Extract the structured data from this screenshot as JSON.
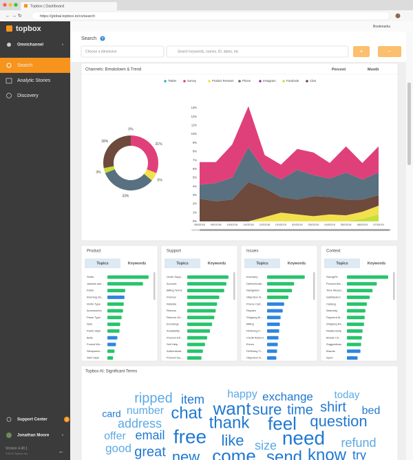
{
  "browser": {
    "tab_title": "Topbox | Dashboard",
    "url": "https://global.topbox.io/cx/search",
    "bookmarks": "Bookmarks"
  },
  "sidebar": {
    "logo": "topbox",
    "workspace": "Omnichannel",
    "nav": [
      "Search",
      "Analytic Stories",
      "Discovery"
    ],
    "support": "Support Center",
    "badge": "3",
    "user": "Jonathan Moore",
    "version": "Version 4.49.1",
    "copyright": "©2019 Topbox Inc."
  },
  "search": {
    "title": "Search",
    "help": "?",
    "dimension_placeholder": "Choose a dimension",
    "keyword_placeholder": "Search keywords, names, ID, dates, etc",
    "add": "+",
    "remove": "−"
  },
  "channels": {
    "title": "Channels: Breakdown & Trend",
    "measure": "Percent",
    "period": "Month",
    "donut": {
      "type": "pie",
      "categories": [
        "Twitter",
        "Survey",
        "Product Reviews",
        "Phone",
        "Instagram",
        "Facebook",
        "Chat"
      ],
      "colors": [
        "#2bb5c8",
        "#e0407a",
        "#f2e14c",
        "#58707f",
        "#8e3d9c",
        "#c6df3a",
        "#6e4a3c"
      ],
      "values": [
        0,
        31,
        5,
        33,
        0,
        3,
        28
      ],
      "value_labels": [
        "0%",
        "31%",
        "5%",
        "33%",
        null,
        "3%",
        "28%"
      ]
    },
    "trend": {
      "type": "area",
      "stacked": true,
      "x": [
        "08/02/18",
        "09/02/18",
        "10/02/18",
        "11/02/18",
        "12/02/18",
        "01/02/19",
        "02/02/19",
        "03/02/19",
        "04/02/19",
        "05/02/19",
        "06/02/19",
        "07/02/19"
      ],
      "ylim": [
        0,
        13
      ],
      "yticks": [
        {
          "value": 0,
          "label": "0%"
        },
        {
          "value": 1,
          "label": "1%"
        },
        {
          "value": 2,
          "label": "2%"
        },
        {
          "value": 3,
          "label": "3%"
        },
        {
          "value": 4,
          "label": "4%"
        },
        {
          "value": 5,
          "label": "5%"
        },
        {
          "value": 6,
          "label": "6%"
        },
        {
          "value": 7,
          "label": "7%"
        },
        {
          "value": 8,
          "label": "8%"
        },
        {
          "value": 9,
          "label": "9%"
        },
        {
          "value": 10,
          "label": "10%"
        },
        {
          "value": 11,
          "label": "11%"
        },
        {
          "value": 12,
          "label": "12%"
        },
        {
          "value": 13,
          "label": "13%"
        }
      ],
      "series": [
        {
          "name": "Facebook",
          "color": "#c6df3a",
          "values": [
            0,
            0,
            0,
            0,
            0,
            0,
            0,
            0,
            0,
            0,
            0.3,
            0.8
          ]
        },
        {
          "name": "Product Reviews",
          "color": "#f2e14c",
          "values": [
            0,
            0,
            0,
            0,
            0.5,
            1.0,
            0.8,
            0.6,
            0.8,
            0.7,
            0.8,
            1.0
          ]
        },
        {
          "name": "Chat",
          "color": "#6e4a3c",
          "values": [
            2.6,
            2.3,
            2.5,
            4.5,
            3.3,
            1.8,
            1.7,
            2.3,
            2.0,
            1.8,
            1.4,
            1.2
          ]
        },
        {
          "name": "Phone",
          "color": "#58707f",
          "values": [
            1.6,
            2.1,
            2.5,
            4.0,
            2.0,
            2.0,
            3.4,
            2.4,
            2.1,
            3.1,
            2.3,
            2.6
          ]
        },
        {
          "name": "Survey",
          "color": "#e0407a",
          "values": [
            2.6,
            2.4,
            3.8,
            4.7,
            1.8,
            1.7,
            2.4,
            2.6,
            1.8,
            3.0,
            1.9,
            3.0
          ]
        }
      ]
    }
  },
  "topic_panels": [
    {
      "title": "Product",
      "tabs": [
        "Topics",
        "Keywords"
      ],
      "xlim": [
        0,
        60
      ],
      "topics": [
        "Shirts",
        "Jackets and...",
        "Pants",
        "Running Sh...",
        "Shirts Type",
        "Accessories",
        "Pants Type",
        "Nets",
        "Pants Style",
        "Belts",
        "Formal Wo...",
        "Sleepwear...",
        "Skirt Style"
      ],
      "values": [
        58,
        50,
        25,
        24,
        23,
        22,
        20,
        18,
        17,
        14,
        12,
        10,
        8
      ],
      "colors": [
        "#27c46b",
        "#27c46b",
        "#27c46b",
        "#2e86de",
        "#27c46b",
        "#27c46b",
        "#27c46b",
        "#27c46b",
        "#27c46b",
        "#2e86de",
        "#2e86de",
        "#27c46b",
        "#27c46b"
      ]
    },
    {
      "title": "Support",
      "tabs": [
        "Topics",
        "Keywords"
      ],
      "xlim": [
        0,
        60
      ],
      "topics": [
        "Order Supp...",
        "Account",
        "Billing Terms",
        "Promos",
        "Website",
        "Returns",
        "Returns Gri...",
        "Exchange",
        "Availability",
        "Product Eff...",
        "Self Help",
        "Authenticati...",
        "Product Inp..."
      ],
      "values": [
        58,
        55,
        52,
        45,
        42,
        40,
        38,
        35,
        32,
        28,
        25,
        22,
        20
      ],
      "colors": [
        "#27c46b",
        "#27c46b",
        "#27c46b",
        "#27c46b",
        "#27c46b",
        "#27c46b",
        "#27c46b",
        "#27c46b",
        "#27c46b",
        "#27c46b",
        "#27c46b",
        "#27c46b",
        "#27c46b"
      ]
    },
    {
      "title": "Issues",
      "tabs": [
        "Topics",
        "Keywords"
      ],
      "xlim": [
        0,
        60
      ],
      "topics": [
        "Inventory",
        "Defect/Unde...",
        "Navigation",
        "Objection N...",
        "Promo Cart...",
        "Repairs",
        "Shipping M...",
        "Billing",
        "Fit/Sizing F...",
        "Credit Refund",
        "Errors",
        "Fit/Sizing Ti...",
        "Objection N..."
      ],
      "values": [
        53,
        38,
        35,
        30,
        24,
        22,
        19,
        18,
        17,
        16,
        15,
        14,
        13
      ],
      "colors": [
        "#27c46b",
        "#27c46b",
        "#27c46b",
        "#27c46b",
        "#2e86de",
        "#2e86de",
        "#2e86de",
        "#2e86de",
        "#2e86de",
        "#2e86de",
        "#2e86de",
        "#2e86de",
        "#2e86de"
      ]
    },
    {
      "title": "Context",
      "tabs": [
        "Topics",
        "Keywords"
      ],
      "xlim": [
        0,
        60
      ],
      "topics": [
        "Sizing/Fit",
        "Product Attr...",
        "Time Measu...",
        "Satisfaction",
        "Catalog",
        "Warranty",
        "Payment M...",
        "Shipping Re...",
        "Relationship",
        "Mobile Ch...",
        "Suggestions",
        "Brands",
        "Sport"
      ],
      "values": [
        58,
        42,
        36,
        32,
        28,
        26,
        25,
        24,
        22,
        21,
        20,
        19,
        15
      ],
      "colors": [
        "#27c46b",
        "#27c46b",
        "#27c46b",
        "#27c46b",
        "#27c46b",
        "#27c46b",
        "#27c46b",
        "#27c46b",
        "#27c46b",
        "#27c46b",
        "#27c46b",
        "#2e86de",
        "#2e86de"
      ]
    }
  ],
  "word_cloud": {
    "title": "Topbox AI: Significant Terms",
    "words": [
      {
        "text": "ripped",
        "size": 20,
        "color": "#5aa9e6"
      },
      {
        "text": "item",
        "size": 18,
        "color": "#1f78d1"
      },
      {
        "text": "happy",
        "size": 16,
        "color": "#5aa9e6"
      },
      {
        "text": "exchange",
        "size": 17,
        "color": "#1f78d1"
      },
      {
        "text": "today",
        "size": 15,
        "color": "#5aa9e6"
      },
      {
        "text": "card",
        "size": 14,
        "color": "#1f78d1"
      },
      {
        "text": "number",
        "size": 16,
        "color": "#5aa9e6"
      },
      {
        "text": "want",
        "size": 26,
        "color": "#1f78d1"
      },
      {
        "text": "sure",
        "size": 22,
        "color": "#1f78d1"
      },
      {
        "text": "time",
        "size": 20,
        "color": "#1f78d1"
      },
      {
        "text": "shirt",
        "size": 20,
        "color": "#1f78d1"
      },
      {
        "text": "bed",
        "size": 16,
        "color": "#1f78d1"
      },
      {
        "text": "address",
        "size": 18,
        "color": "#5aa9e6"
      },
      {
        "text": "chat",
        "size": 24,
        "color": "#1f78d1"
      },
      {
        "text": "thank",
        "size": 24,
        "color": "#1f78d1"
      },
      {
        "text": "feel",
        "size": 26,
        "color": "#1f78d1"
      },
      {
        "text": "question",
        "size": 22,
        "color": "#1f78d1"
      },
      {
        "text": "offer",
        "size": 16,
        "color": "#5aa9e6"
      },
      {
        "text": "email",
        "size": 18,
        "color": "#1f78d1"
      },
      {
        "text": "free",
        "size": 28,
        "color": "#1f78d1"
      },
      {
        "text": "like",
        "size": 22,
        "color": "#1f78d1"
      },
      {
        "text": "need",
        "size": 28,
        "color": "#1f78d1"
      },
      {
        "text": "refund",
        "size": 18,
        "color": "#5aa9e6"
      },
      {
        "text": "size",
        "size": 18,
        "color": "#5aa9e6"
      },
      {
        "text": "good",
        "size": 17,
        "color": "#5aa9e6"
      },
      {
        "text": "great",
        "size": 20,
        "color": "#1f78d1"
      },
      {
        "text": "new",
        "size": 22,
        "color": "#1f78d1"
      },
      {
        "text": "come",
        "size": 26,
        "color": "#1f78d1"
      },
      {
        "text": "send",
        "size": 24,
        "color": "#1f78d1"
      },
      {
        "text": "know",
        "size": 24,
        "color": "#1f78d1"
      },
      {
        "text": "try",
        "size": 18,
        "color": "#1f78d1"
      }
    ]
  }
}
